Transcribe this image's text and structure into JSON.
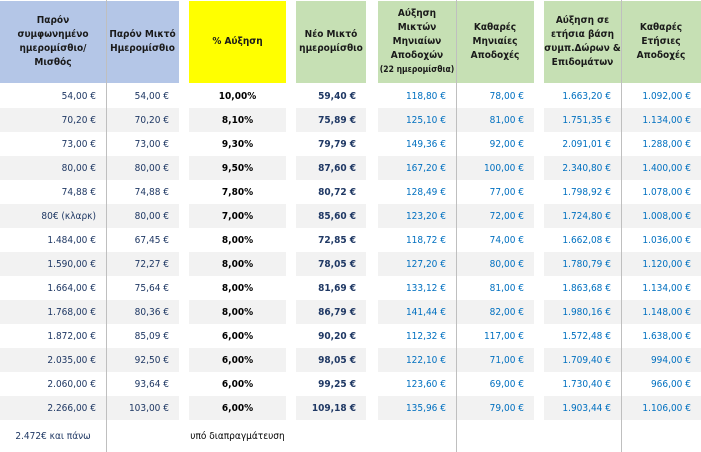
{
  "headers": {
    "col1": "Παρόν συμφωνημένο ημερομίσθιο/ Μισθός",
    "col2": "Παρόν Μικτό Ημερομίσθιο",
    "col3": "% Αύξηση",
    "col4": "Νέο Μικτό ημερομίσθιο",
    "col5": "Αύξηση Μικτών Μηνιαίων Αποδοχών",
    "col5_sub": "(22 ημερομίσθια)",
    "col6": "Καθαρές Μηνιαίες Αποδοχές",
    "col7": "Αύξηση σε ετήσια βάση συμπ.Δώρων & Επιδομάτων",
    "col8": "Καθαρές Ετήσιες Αποδοχές"
  },
  "colors": {
    "header_blue": "#b4c6e7",
    "header_yellow": "#ffff00",
    "header_green": "#c6e0b4",
    "value_blue": "#0070c0",
    "stripe": "#f2f2f2"
  },
  "rows": [
    [
      "54,00 €",
      "54,00 €",
      "10,00%",
      "59,40 €",
      "118,80 €",
      "78,00 €",
      "1.663,20 €",
      "1.092,00 €"
    ],
    [
      "70,20 €",
      "70,20 €",
      "8,10%",
      "75,89 €",
      "125,10 €",
      "81,00 €",
      "1.751,35 €",
      "1.134,00 €"
    ],
    [
      "73,00 €",
      "73,00 €",
      "9,30%",
      "79,79 €",
      "149,36 €",
      "92,00 €",
      "2.091,01 €",
      "1.288,00 €"
    ],
    [
      "80,00 €",
      "80,00 €",
      "9,50%",
      "87,60 €",
      "167,20 €",
      "100,00 €",
      "2.340,80 €",
      "1.400,00 €"
    ],
    [
      "74,88 €",
      "74,88 €",
      "7,80%",
      "80,72 €",
      "128,49 €",
      "77,00 €",
      "1.798,92 €",
      "1.078,00 €"
    ],
    [
      "80€ (κλαρκ)",
      "80,00 €",
      "7,00%",
      "85,60 €",
      "123,20 €",
      "72,00 €",
      "1.724,80 €",
      "1.008,00 €"
    ],
    [
      "1.484,00 €",
      "67,45 €",
      "8,00%",
      "72,85 €",
      "118,72 €",
      "74,00 €",
      "1.662,08 €",
      "1.036,00 €"
    ],
    [
      "1.590,00 €",
      "72,27 €",
      "8,00%",
      "78,05 €",
      "127,20 €",
      "80,00 €",
      "1.780,79 €",
      "1.120,00 €"
    ],
    [
      "1.664,00 €",
      "75,64 €",
      "8,00%",
      "81,69 €",
      "133,12 €",
      "81,00 €",
      "1.863,68 €",
      "1.134,00 €"
    ],
    [
      "1.768,00 €",
      "80,36 €",
      "8,00%",
      "86,79 €",
      "141,44 €",
      "82,00 €",
      "1.980,16 €",
      "1.148,00 €"
    ],
    [
      "1.872,00 €",
      "85,09 €",
      "6,00%",
      "90,20 €",
      "112,32 €",
      "117,00 €",
      "1.572,48 €",
      "1.638,00 €"
    ],
    [
      "2.035,00 €",
      "92,50 €",
      "6,00%",
      "98,05 €",
      "122,10 €",
      "71,00 €",
      "1.709,40 €",
      "994,00 €"
    ],
    [
      "2.060,00 €",
      "93,64 €",
      "6,00%",
      "99,25 €",
      "123,60 €",
      "69,00 €",
      "1.730,40 €",
      "966,00 €"
    ],
    [
      "2.266,00 €",
      "103,00 €",
      "6,00%",
      "109,18 €",
      "135,96 €",
      "79,00 €",
      "1.903,44 €",
      "1.106,00 €"
    ]
  ],
  "last_row": {
    "col1": "2.472€ και πάνω",
    "col3": "υπό διαπραγμάτευση"
  }
}
